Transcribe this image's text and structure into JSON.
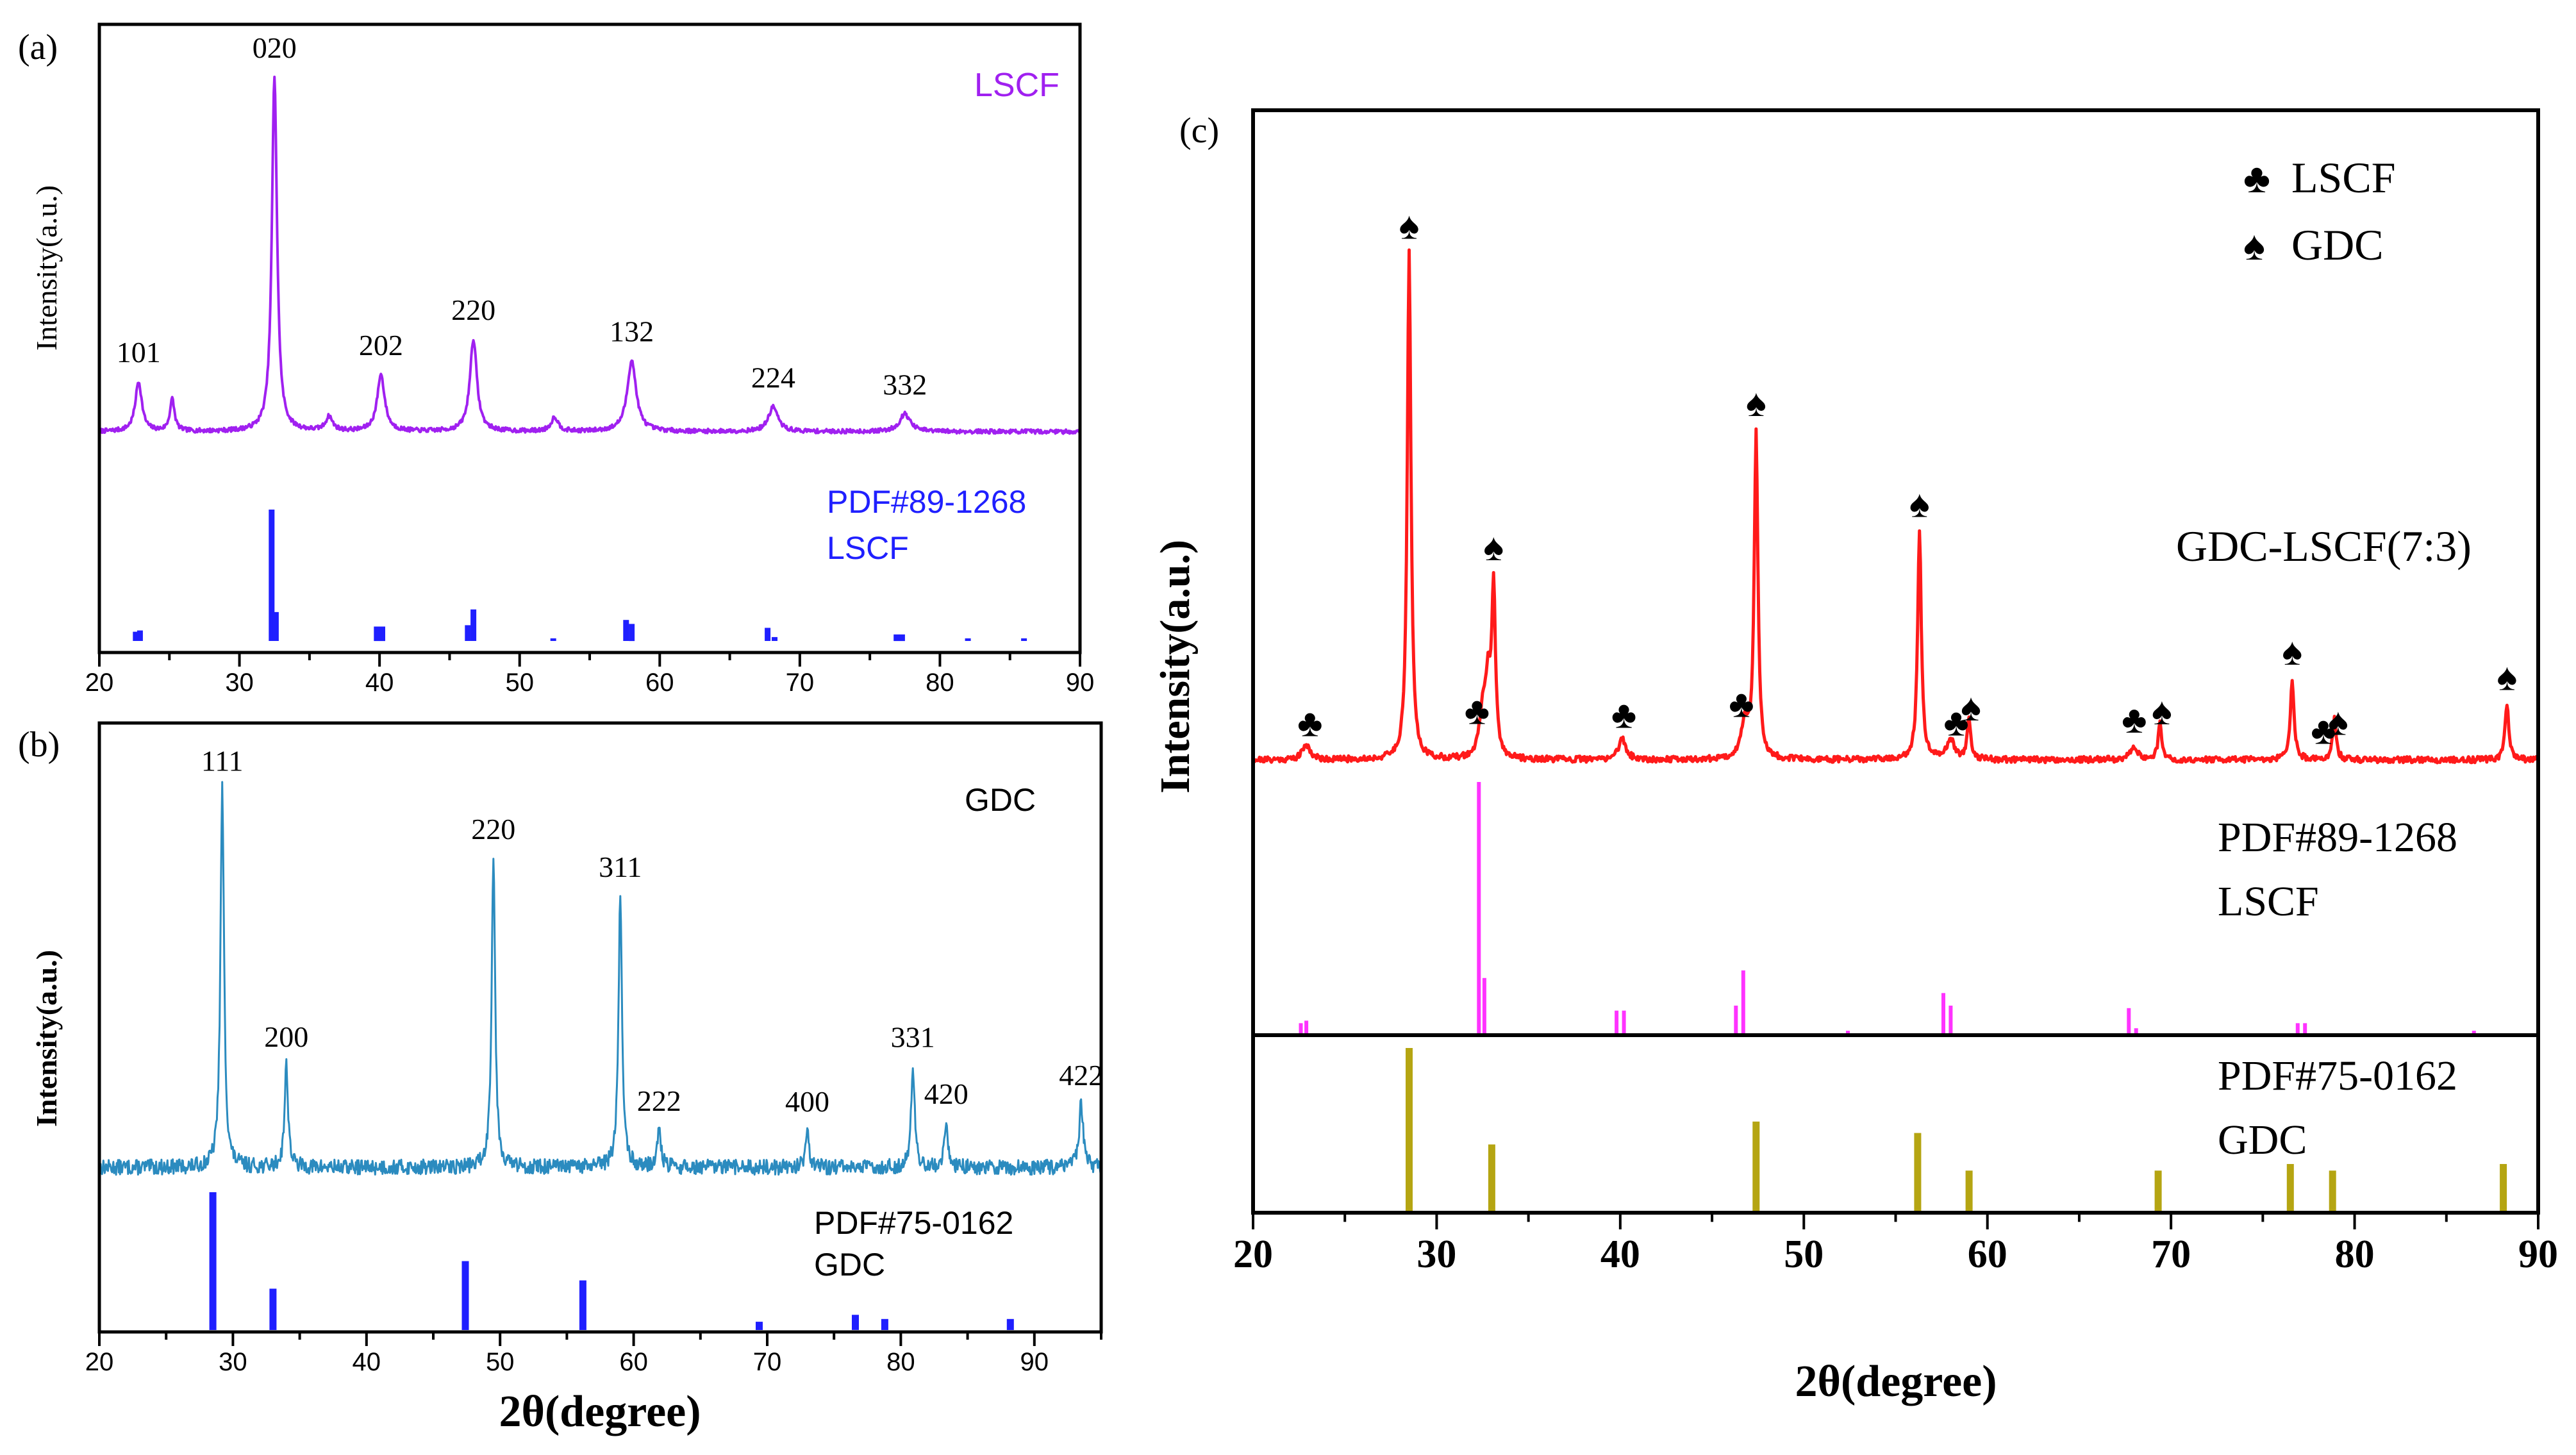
{
  "figure": {
    "panels": [
      "(a)",
      "(b)",
      "(c)"
    ]
  },
  "chart_data": [
    {
      "panel": "(a)",
      "type": "line",
      "xlabel": "",
      "ylabel": "Intensity(a.u.)",
      "xlim": [
        20,
        90
      ],
      "xticks": [
        20,
        30,
        40,
        50,
        60,
        70,
        80,
        90
      ],
      "pattern": {
        "name": "LSCF",
        "color": "#a020f0",
        "baseline": 0.35,
        "noise": 0.006,
        "peaks": [
          {
            "x": 22.8,
            "h": 0.14,
            "w": 0.28
          },
          {
            "x": 25.2,
            "h": 0.09,
            "w": 0.2
          },
          {
            "x": 32.5,
            "h": 1.0,
            "w": 0.22
          },
          {
            "x": 36.4,
            "h": 0.04,
            "w": 0.3
          },
          {
            "x": 40.1,
            "h": 0.16,
            "w": 0.32
          },
          {
            "x": 46.7,
            "h": 0.26,
            "w": 0.3
          },
          {
            "x": 52.5,
            "h": 0.04,
            "w": 0.3
          },
          {
            "x": 58.0,
            "h": 0.2,
            "w": 0.38
          },
          {
            "x": 68.1,
            "h": 0.07,
            "w": 0.4
          },
          {
            "x": 77.5,
            "h": 0.05,
            "w": 0.45
          }
        ],
        "peak_labels": [
          {
            "x": 22.8,
            "label": "101"
          },
          {
            "x": 32.5,
            "label": "020"
          },
          {
            "x": 40.1,
            "label": "202"
          },
          {
            "x": 46.7,
            "label": "220"
          },
          {
            "x": 58.0,
            "label": "132"
          },
          {
            "x": 68.1,
            "label": "224"
          },
          {
            "x": 77.5,
            "label": "332"
          }
        ],
        "legend": "LSCF"
      },
      "reference": {
        "name": "PDF#89-1268",
        "phase": "LSCF",
        "color": "#1f1fff",
        "lines": [
          {
            "x": 22.6,
            "h": 0.07
          },
          {
            "x": 22.9,
            "h": 0.08
          },
          {
            "x": 32.3,
            "h": 1.0
          },
          {
            "x": 32.6,
            "h": 0.22
          },
          {
            "x": 39.8,
            "h": 0.11
          },
          {
            "x": 40.2,
            "h": 0.11
          },
          {
            "x": 46.3,
            "h": 0.12
          },
          {
            "x": 46.7,
            "h": 0.24
          },
          {
            "x": 52.4,
            "h": 0.02
          },
          {
            "x": 57.6,
            "h": 0.16
          },
          {
            "x": 58.0,
            "h": 0.13
          },
          {
            "x": 67.7,
            "h": 0.1
          },
          {
            "x": 68.2,
            "h": 0.03
          },
          {
            "x": 76.9,
            "h": 0.05
          },
          {
            "x": 77.3,
            "h": 0.05
          },
          {
            "x": 82.0,
            "h": 0.02
          },
          {
            "x": 86.0,
            "h": 0.02
          }
        ]
      }
    },
    {
      "panel": "(b)",
      "type": "line",
      "xlabel": "2θ(degree)",
      "ylabel": "Intensity(a.u.)",
      "xlim": [
        20,
        95
      ],
      "xticks": [
        20,
        30,
        40,
        50,
        60,
        70,
        80,
        90
      ],
      "pattern": {
        "name": "GDC",
        "color": "#2b8bbf",
        "baseline": 0.28,
        "noise": 0.02,
        "peaks": [
          {
            "x": 29.2,
            "h": 1.0,
            "w": 0.16
          },
          {
            "x": 34.0,
            "h": 0.27,
            "w": 0.16
          },
          {
            "x": 49.5,
            "h": 0.82,
            "w": 0.16
          },
          {
            "x": 59.0,
            "h": 0.72,
            "w": 0.16
          },
          {
            "x": 61.9,
            "h": 0.1,
            "w": 0.16
          },
          {
            "x": 73.0,
            "h": 0.1,
            "w": 0.16
          },
          {
            "x": 80.9,
            "h": 0.27,
            "w": 0.16
          },
          {
            "x": 83.4,
            "h": 0.12,
            "w": 0.16
          },
          {
            "x": 93.5,
            "h": 0.17,
            "w": 0.18
          }
        ],
        "peak_labels": [
          {
            "x": 29.2,
            "label": "111"
          },
          {
            "x": 34.0,
            "label": "200"
          },
          {
            "x": 49.5,
            "label": "220"
          },
          {
            "x": 59.0,
            "label": "311"
          },
          {
            "x": 61.9,
            "label": "222"
          },
          {
            "x": 73.0,
            "label": "400"
          },
          {
            "x": 80.9,
            "label": "331"
          },
          {
            "x": 83.4,
            "label": "420"
          },
          {
            "x": 93.5,
            "label": "422"
          }
        ],
        "legend": "GDC"
      },
      "reference": {
        "name": "PDF#75-0162",
        "phase": "GDC",
        "color": "#1f1fff",
        "lines": [
          {
            "x": 28.5,
            "h": 1.0
          },
          {
            "x": 33.0,
            "h": 0.3
          },
          {
            "x": 47.4,
            "h": 0.5
          },
          {
            "x": 56.2,
            "h": 0.36
          },
          {
            "x": 69.4,
            "h": 0.06
          },
          {
            "x": 76.6,
            "h": 0.11
          },
          {
            "x": 78.8,
            "h": 0.08
          },
          {
            "x": 88.2,
            "h": 0.08
          }
        ]
      }
    },
    {
      "panel": "(c)",
      "type": "line",
      "xlabel": "2θ(degree)",
      "ylabel": "Intensity(a.u.)",
      "xlim": [
        20,
        90
      ],
      "xticks": [
        20,
        30,
        40,
        50,
        60,
        70,
        80,
        90
      ],
      "legend": [
        {
          "symbol": "♣",
          "label": "LSCF"
        },
        {
          "symbol": "♠",
          "label": "GDC"
        }
      ],
      "pattern": {
        "name": "GDC-LSCF(7:3)",
        "color": "#ff1a1a",
        "baseline": 0.03,
        "noise": 0.006,
        "peaks": [
          {
            "x": 22.9,
            "h": 0.03,
            "w": 0.25
          },
          {
            "x": 28.5,
            "h": 1.0,
            "w": 0.12
          },
          {
            "x": 32.5,
            "h": 0.08,
            "w": 0.2
          },
          {
            "x": 32.8,
            "h": 0.14,
            "w": 0.18
          },
          {
            "x": 33.1,
            "h": 0.32,
            "w": 0.12
          },
          {
            "x": 40.1,
            "h": 0.04,
            "w": 0.25
          },
          {
            "x": 46.8,
            "h": 0.07,
            "w": 0.25
          },
          {
            "x": 47.4,
            "h": 0.64,
            "w": 0.12
          },
          {
            "x": 56.3,
            "h": 0.45,
            "w": 0.12
          },
          {
            "x": 58.0,
            "h": 0.04,
            "w": 0.25
          },
          {
            "x": 59.0,
            "h": 0.08,
            "w": 0.12
          },
          {
            "x": 68.0,
            "h": 0.025,
            "w": 0.25
          },
          {
            "x": 69.4,
            "h": 0.07,
            "w": 0.12
          },
          {
            "x": 76.6,
            "h": 0.16,
            "w": 0.12
          },
          {
            "x": 78.9,
            "h": 0.08,
            "w": 0.12
          },
          {
            "x": 88.3,
            "h": 0.11,
            "w": 0.12
          }
        ],
        "markers": [
          {
            "x": 23.1,
            "symbol": "♣"
          },
          {
            "x": 28.5,
            "symbol": "♠"
          },
          {
            "x": 32.2,
            "symbol": "♣"
          },
          {
            "x": 33.1,
            "symbol": "♠"
          },
          {
            "x": 40.2,
            "symbol": "♣"
          },
          {
            "x": 46.6,
            "symbol": "♣"
          },
          {
            "x": 47.4,
            "symbol": "♠"
          },
          {
            "x": 56.3,
            "symbol": "♠"
          },
          {
            "x": 58.3,
            "symbol": "♣"
          },
          {
            "x": 59.1,
            "symbol": "♠"
          },
          {
            "x": 68.0,
            "symbol": "♣"
          },
          {
            "x": 69.5,
            "symbol": "♠"
          },
          {
            "x": 76.6,
            "symbol": "♠"
          },
          {
            "x": 78.3,
            "symbol": "♣"
          },
          {
            "x": 79.1,
            "symbol": "♠"
          },
          {
            "x": 88.3,
            "symbol": "♠"
          }
        ],
        "legend": "GDC-LSCF(7:3)"
      },
      "references": [
        {
          "name": "PDF#89-1268",
          "phase": "LSCF",
          "color": "#ff33ff",
          "lines": [
            {
              "x": 22.6,
              "h": 0.04
            },
            {
              "x": 22.9,
              "h": 0.05
            },
            {
              "x": 32.3,
              "h": 1.0
            },
            {
              "x": 32.6,
              "h": 0.22
            },
            {
              "x": 39.8,
              "h": 0.09
            },
            {
              "x": 40.2,
              "h": 0.09
            },
            {
              "x": 46.3,
              "h": 0.11
            },
            {
              "x": 46.7,
              "h": 0.25
            },
            {
              "x": 52.4,
              "h": 0.01
            },
            {
              "x": 57.6,
              "h": 0.16
            },
            {
              "x": 58.0,
              "h": 0.11
            },
            {
              "x": 67.7,
              "h": 0.1
            },
            {
              "x": 68.1,
              "h": 0.02
            },
            {
              "x": 76.9,
              "h": 0.04
            },
            {
              "x": 77.3,
              "h": 0.04
            },
            {
              "x": 86.5,
              "h": 0.01
            }
          ]
        },
        {
          "name": "PDF#75-0162",
          "phase": "GDC",
          "color": "#b5a512",
          "lines": [
            {
              "x": 28.5,
              "h": 1.0
            },
            {
              "x": 33.0,
              "h": 0.41
            },
            {
              "x": 47.4,
              "h": 0.55
            },
            {
              "x": 56.2,
              "h": 0.48
            },
            {
              "x": 59.0,
              "h": 0.25
            },
            {
              "x": 69.3,
              "h": 0.25
            },
            {
              "x": 76.5,
              "h": 0.29
            },
            {
              "x": 78.8,
              "h": 0.25
            },
            {
              "x": 88.1,
              "h": 0.29
            }
          ]
        }
      ]
    }
  ]
}
